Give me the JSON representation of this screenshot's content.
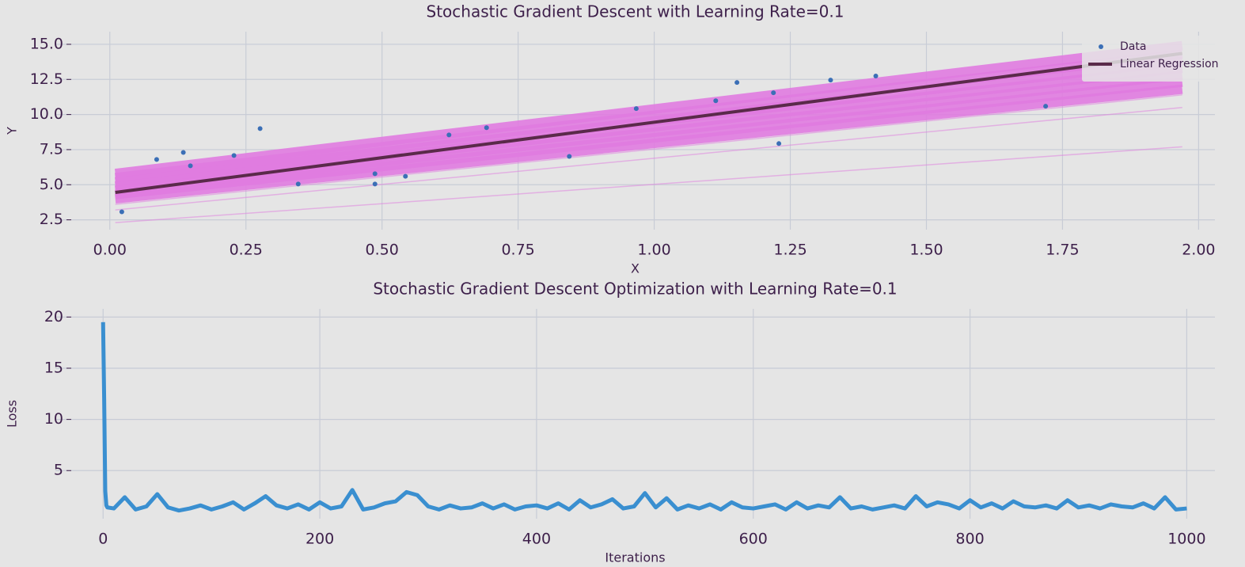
{
  "chart_data": [
    {
      "type": "scatter",
      "title": "Stochastic Gradient Descent with Learning Rate=0.1",
      "xlabel": "X",
      "ylabel": "Y",
      "xlim": [
        -0.1,
        2.03
      ],
      "ylim": [
        1.8,
        15.9
      ],
      "xticks": [
        {
          "value": 0,
          "label": "0.00"
        },
        {
          "value": 0.25,
          "label": "0.25"
        },
        {
          "value": 0.5,
          "label": "0.50"
        },
        {
          "value": 0.75,
          "label": "0.75"
        },
        {
          "value": 1,
          "label": "1.00"
        },
        {
          "value": 1.25,
          "label": "1.25"
        },
        {
          "value": 1.5,
          "label": "1.50"
        },
        {
          "value": 1.75,
          "label": "1.75"
        },
        {
          "value": 2,
          "label": "2.00"
        }
      ],
      "yticks": [
        2.5,
        {
          "value": 5,
          "label": "5.0"
        },
        7.5,
        {
          "value": 10,
          "label": "10.0"
        },
        12.5,
        {
          "value": 15,
          "label": "15.0"
        }
      ],
      "grid": true,
      "legend": "upper right",
      "series": [
        {
          "type": "line",
          "color": "#e07be0",
          "linewidth": 1.5,
          "alpha": 0.5,
          "x": [
            0.01,
            1.97
          ],
          "values": [
            2.3,
            7.7
          ]
        },
        {
          "type": "line",
          "color": "#e07be0",
          "linewidth": 1.5,
          "alpha": 0.5,
          "x": [
            0.01,
            1.97
          ],
          "values": [
            3.2,
            10.5
          ]
        },
        {
          "type": "line",
          "color": "#e07be0",
          "linewidth": 1.5,
          "alpha": 0.5,
          "x": [
            0.01,
            1.97
          ],
          "values": [
            3.6,
            11.4
          ]
        },
        {
          "type": "line",
          "color": "#e07be0",
          "linewidth": 12,
          "alpha": 0.9,
          "x": [
            0.01,
            1.97
          ],
          "values": [
            4.0,
            11.8
          ]
        },
        {
          "type": "line",
          "color": "#e07be0",
          "linewidth": 12,
          "alpha": 0.9,
          "x": [
            0.01,
            1.97
          ],
          "values": [
            4.3,
            12.3
          ]
        },
        {
          "type": "line",
          "color": "#e07be0",
          "linewidth": 12,
          "alpha": 0.9,
          "x": [
            0.01,
            1.97
          ],
          "values": [
            4.6,
            12.8
          ]
        },
        {
          "type": "line",
          "color": "#e07be0",
          "linewidth": 12,
          "alpha": 0.9,
          "x": [
            0.01,
            1.97
          ],
          "values": [
            4.9,
            13.3
          ]
        },
        {
          "type": "line",
          "color": "#e07be0",
          "linewidth": 12,
          "alpha": 0.9,
          "x": [
            0.01,
            1.97
          ],
          "values": [
            5.2,
            13.8
          ]
        },
        {
          "type": "line",
          "color": "#e07be0",
          "linewidth": 12,
          "alpha": 0.9,
          "x": [
            0.01,
            1.97
          ],
          "values": [
            5.5,
            14.3
          ]
        },
        {
          "type": "line",
          "color": "#e07be0",
          "linewidth": 12,
          "alpha": 0.9,
          "x": [
            0.01,
            1.97
          ],
          "values": [
            5.8,
            14.9
          ]
        },
        {
          "name": "Data",
          "type": "scatter",
          "color": "#3b6fb6",
          "x": [
            0.022,
            0.086,
            0.135,
            0.148,
            0.228,
            0.276,
            0.346,
            0.487,
            0.487,
            0.543,
            0.623,
            0.692,
            0.844,
            0.967,
            1.113,
            1.152,
            1.219,
            1.229,
            1.324,
            1.407,
            1.719
          ],
          "values": [
            3.07,
            6.8,
            7.3,
            6.35,
            7.08,
            9.0,
            5.05,
            5.78,
            5.05,
            5.6,
            8.55,
            9.06,
            7.02,
            10.42,
            10.98,
            12.28,
            11.55,
            7.93,
            12.45,
            12.74,
            10.59
          ]
        },
        {
          "name": "Linear Regression",
          "type": "line",
          "color": "#5a2a4a",
          "linewidth": 4,
          "alpha": 1,
          "x": [
            0.01,
            1.97
          ],
          "values": [
            4.45,
            14.35
          ]
        }
      ]
    },
    {
      "type": "line",
      "title": "Stochastic Gradient Descent Optimization with Learning Rate=0.1",
      "xlabel": "Iterations",
      "ylabel": "Loss",
      "xlim": [
        -44,
        1026
      ],
      "ylim": [
        0.3,
        20.8
      ],
      "xticks": [
        0,
        200,
        400,
        600,
        800,
        1000
      ],
      "yticks": [
        5,
        10,
        15,
        20
      ],
      "grid": true,
      "series": [
        {
          "type": "line",
          "color": "#3a8fd0",
          "linewidth": 5,
          "alpha": 1,
          "x": [
            0,
            1,
            2,
            3,
            4,
            10,
            20,
            30,
            40,
            50,
            60,
            70,
            80,
            90,
            100,
            110,
            120,
            130,
            140,
            150,
            160,
            170,
            180,
            190,
            200,
            210,
            220,
            230,
            240,
            250,
            260,
            270,
            280,
            290,
            300,
            310,
            320,
            330,
            340,
            350,
            360,
            370,
            380,
            390,
            400,
            410,
            420,
            430,
            440,
            450,
            460,
            470,
            480,
            490,
            500,
            510,
            520,
            530,
            540,
            550,
            560,
            570,
            580,
            590,
            600,
            610,
            620,
            630,
            640,
            650,
            660,
            670,
            680,
            690,
            700,
            710,
            720,
            730,
            740,
            750,
            760,
            770,
            780,
            790,
            800,
            810,
            820,
            830,
            840,
            850,
            860,
            870,
            880,
            890,
            900,
            910,
            920,
            930,
            940,
            950,
            960,
            970,
            980,
            990,
            1000
          ],
          "values": [
            19.5,
            12,
            3,
            1.6,
            1.4,
            1.3,
            2.4,
            1.2,
            1.5,
            2.7,
            1.4,
            1.1,
            1.3,
            1.6,
            1.2,
            1.5,
            1.9,
            1.2,
            1.8,
            2.5,
            1.6,
            1.3,
            1.7,
            1.2,
            1.9,
            1.3,
            1.5,
            3.1,
            1.2,
            1.4,
            1.8,
            2.0,
            2.9,
            2.6,
            1.5,
            1.2,
            1.6,
            1.3,
            1.4,
            1.8,
            1.3,
            1.7,
            1.2,
            1.5,
            1.6,
            1.3,
            1.8,
            1.2,
            2.1,
            1.4,
            1.7,
            2.2,
            1.3,
            1.5,
            2.8,
            1.4,
            2.3,
            1.2,
            1.6,
            1.3,
            1.7,
            1.2,
            1.9,
            1.4,
            1.3,
            1.5,
            1.7,
            1.2,
            1.9,
            1.3,
            1.6,
            1.4,
            2.4,
            1.3,
            1.5,
            1.2,
            1.4,
            1.6,
            1.3,
            2.5,
            1.5,
            1.9,
            1.7,
            1.3,
            2.1,
            1.4,
            1.8,
            1.3,
            2.0,
            1.5,
            1.4,
            1.6,
            1.3,
            2.1,
            1.4,
            1.6,
            1.3,
            1.7,
            1.5,
            1.4,
            1.8,
            1.3,
            2.4,
            1.2,
            1.3
          ]
        }
      ]
    }
  ]
}
